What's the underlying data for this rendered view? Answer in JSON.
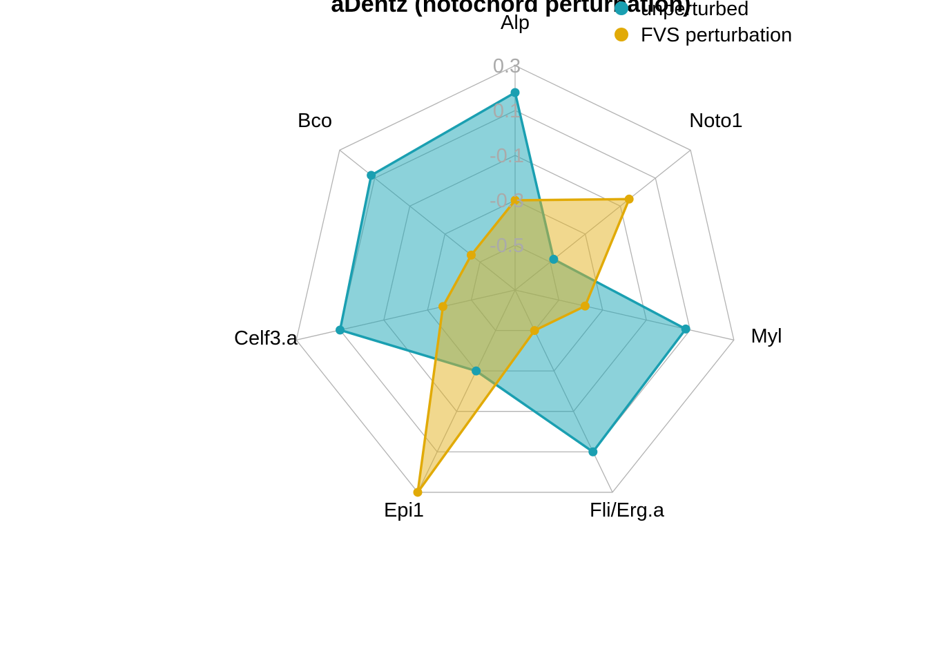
{
  "chart_data": {
    "type": "radar",
    "title": "aDentz (notochord perturbation)",
    "axes": [
      "Alp",
      "Noto1",
      "Myl",
      "Fli/Erg.a",
      "Epi1",
      "Celf3.a",
      "Bco"
    ],
    "range": [
      -0.7,
      0.3
    ],
    "grid_levels": [
      -0.7,
      -0.5,
      -0.3,
      -0.1,
      0.1,
      0.3
    ],
    "tick_labels": [
      "-0.5",
      "-0.3",
      "-0.1",
      "0.1",
      "0.3"
    ],
    "series": [
      {
        "name": "unperturbed",
        "color": "#1a9fb1",
        "fill": "#1aa6b5",
        "values": [
          0.18,
          -0.48,
          0.08,
          0.1,
          -0.3,
          0.1,
          0.12
        ]
      },
      {
        "name": "FVS perturbation",
        "color": "#e1aa07",
        "fill": "#e4b21d",
        "values": [
          -0.3,
          -0.05,
          -0.38,
          -0.5,
          0.3,
          -0.37,
          -0.45
        ]
      }
    ],
    "legend_position": "top-right"
  }
}
